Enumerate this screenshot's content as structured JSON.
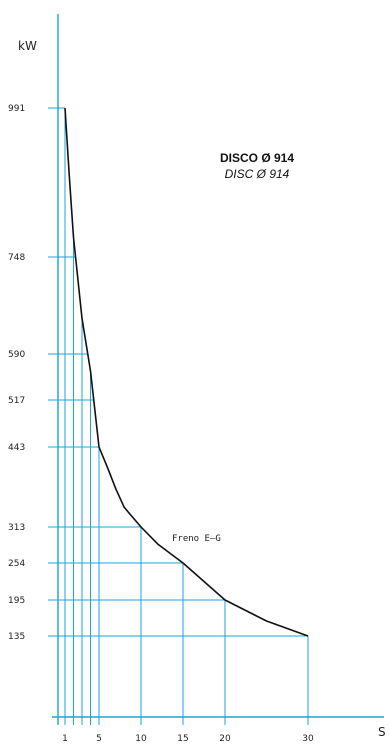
{
  "chart_data": {
    "type": "line",
    "title": "DISCO Ø 914",
    "subtitle": "DISC Ø 914",
    "ylabel": "kW",
    "xlabel": "S",
    "x_ticks": [
      1,
      5,
      10,
      15,
      20,
      30
    ],
    "y_ticks": [
      991,
      748,
      590,
      517,
      443,
      313,
      254,
      195,
      135
    ],
    "annotation": "Freno E–G",
    "line_color": "#1aa3dc",
    "curve_color": "#111111",
    "grid": true,
    "series": [
      {
        "points": [
          {
            "x": 1,
            "y": 991
          },
          {
            "x": 1.5,
            "y": 880
          },
          {
            "x": 2,
            "y": 780
          },
          {
            "x": 3,
            "y": 648
          },
          {
            "x": 4,
            "y": 563
          },
          {
            "x": 5,
            "y": 443
          },
          {
            "x": 6,
            "y": 410
          },
          {
            "x": 7,
            "y": 375
          },
          {
            "x": 8,
            "y": 345
          },
          {
            "x": 10,
            "y": 313
          },
          {
            "x": 12,
            "y": 285
          },
          {
            "x": 15,
            "y": 254
          },
          {
            "x": 20,
            "y": 195
          },
          {
            "x": 25,
            "y": 160
          },
          {
            "x": 30,
            "y": 135
          }
        ]
      }
    ]
  }
}
